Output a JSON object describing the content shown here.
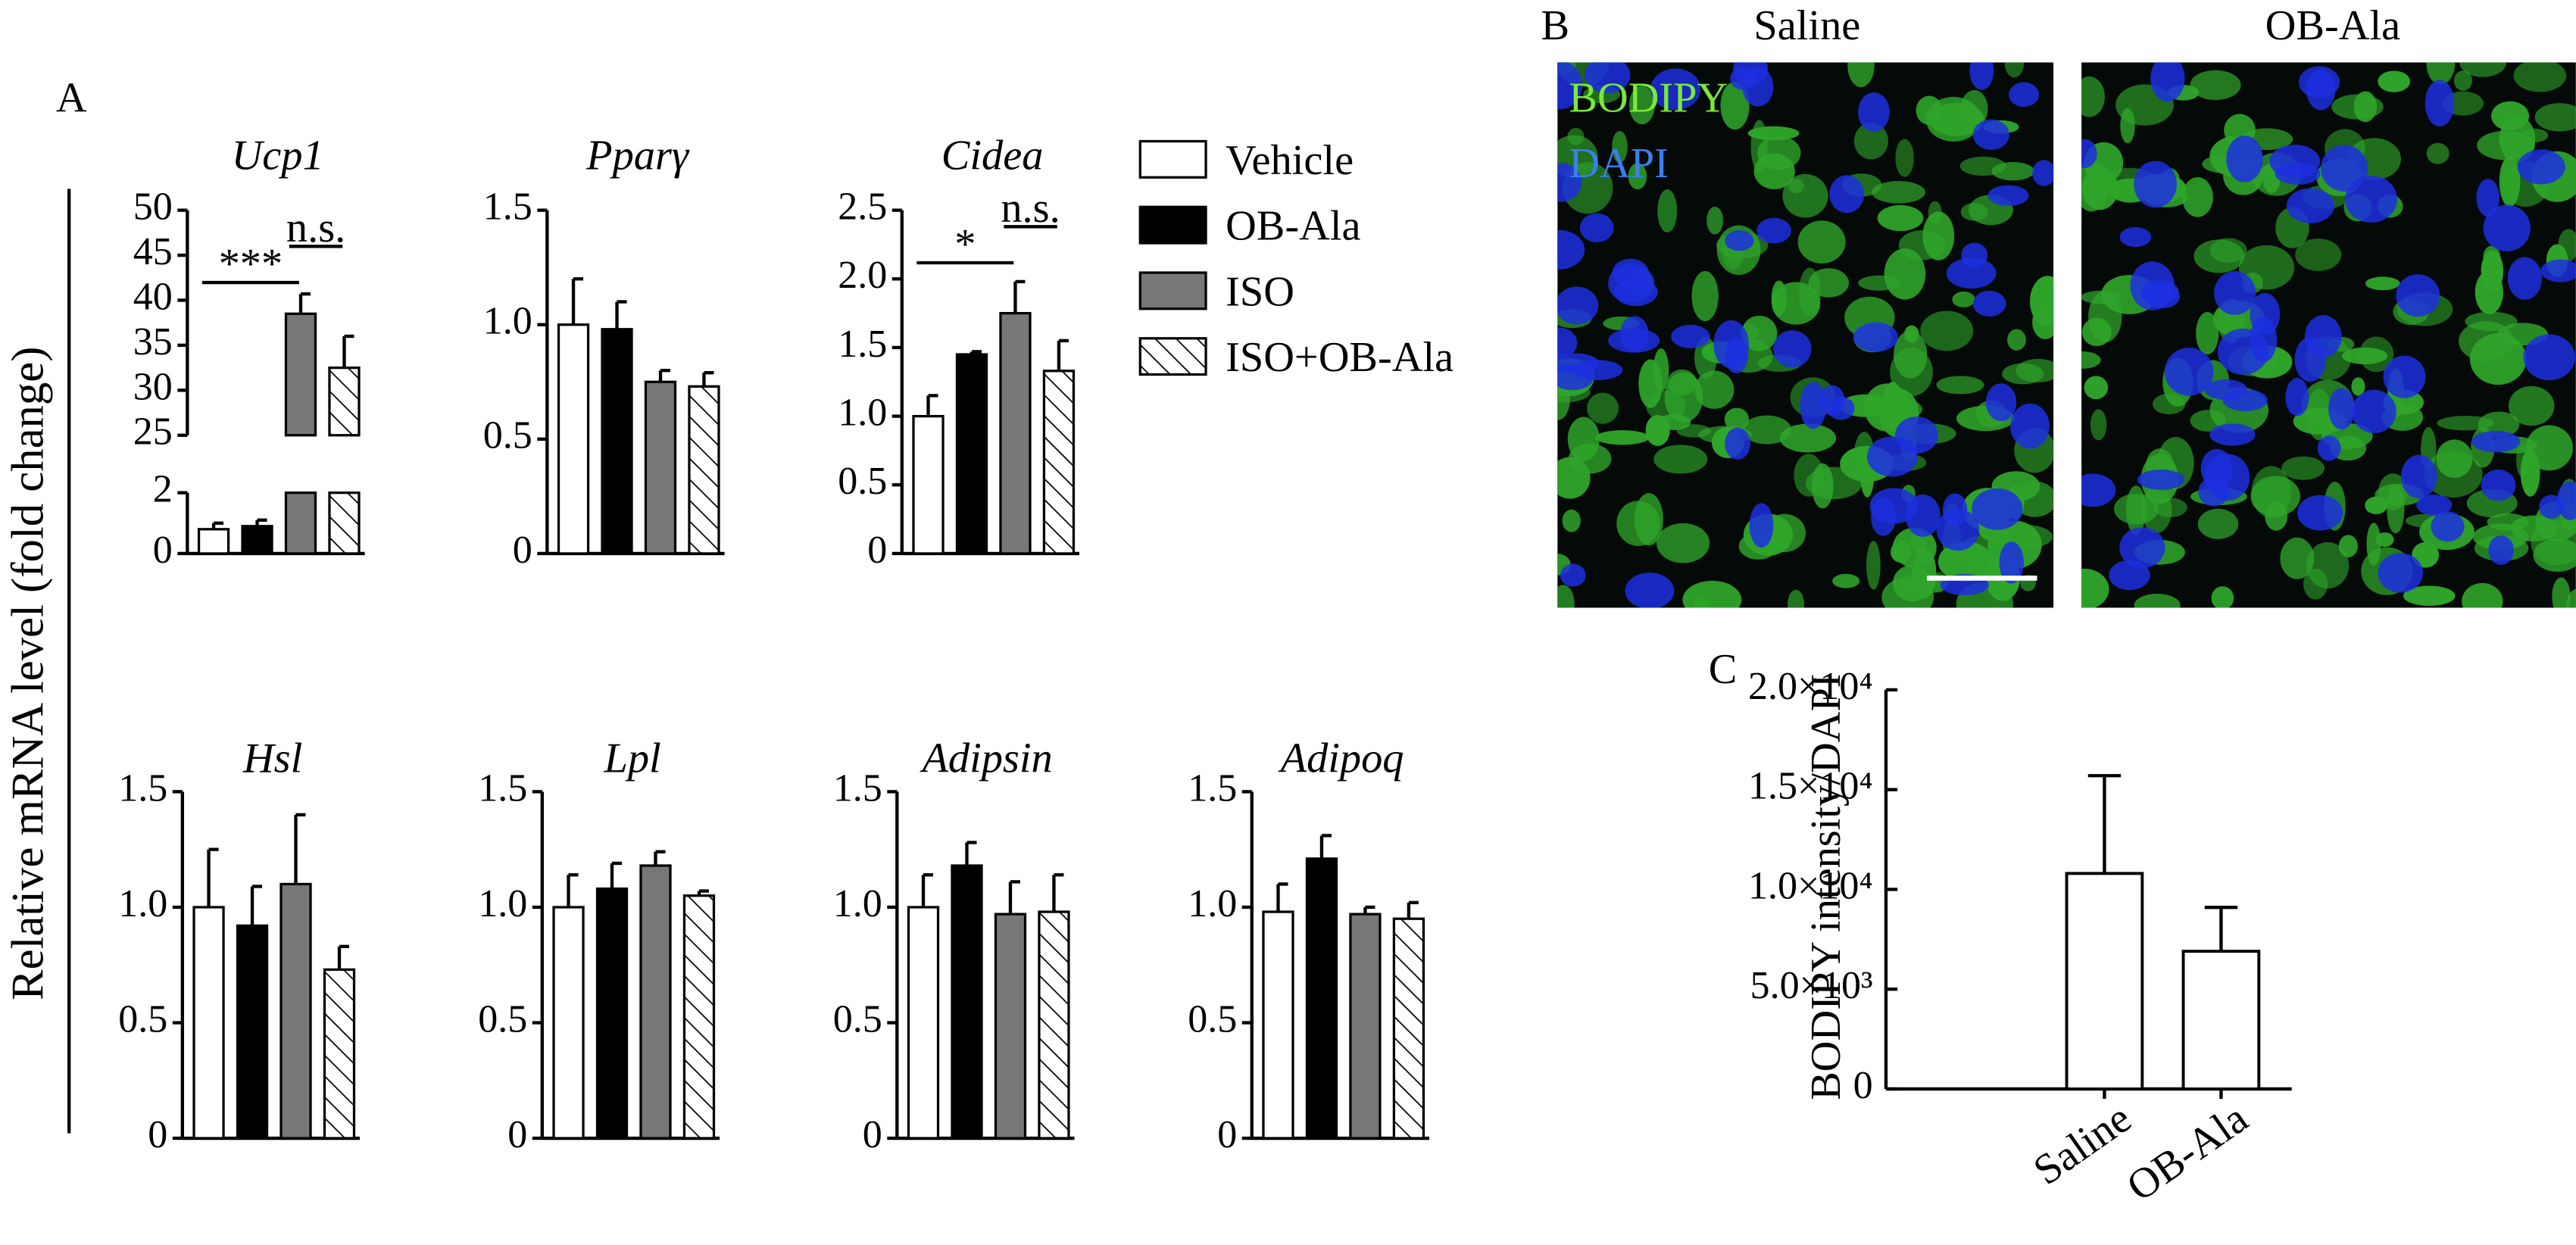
{
  "panel_labels": {
    "a": "A",
    "b": "B",
    "c": "C"
  },
  "ylabel_a": "Relative mRNA level (fold change)",
  "legend": [
    {
      "name": "Vehicle",
      "fill": "#ffffff"
    },
    {
      "name": "OB-Ala",
      "fill": "#000000"
    },
    {
      "name": "ISO",
      "fill": "#777777"
    },
    {
      "name": "ISO+OB-Ala",
      "fill": "hatch"
    }
  ],
  "images": {
    "left_title": "Saline",
    "right_title": "OB-Ala",
    "stain_1": "BODIPY",
    "stain_2": "DAPI"
  },
  "chart_data": [
    {
      "type": "bar",
      "title": "Ucp1",
      "values": [
        0.8,
        0.9,
        38.5,
        32.5
      ],
      "errors": [
        0.2,
        0.2,
        2.2,
        3.5
      ],
      "ylim": [
        0,
        50
      ],
      "ybreak": [
        2,
        25
      ],
      "yticks": [
        0,
        2,
        25,
        30,
        35,
        40,
        45,
        50
      ],
      "annotations": [
        "***",
        "n.s."
      ]
    },
    {
      "type": "bar",
      "title": "Pparγ",
      "values": [
        1.0,
        0.98,
        0.75,
        0.73
      ],
      "errors": [
        0.2,
        0.12,
        0.05,
        0.06
      ],
      "ylim": [
        0,
        1.5
      ],
      "yticks": [
        0,
        {
          "value": 0.5,
          "label": "0.5"
        },
        {
          "value": 1,
          "label": "1.0"
        },
        {
          "value": 1.5,
          "label": "1.5"
        }
      ]
    },
    {
      "type": "bar",
      "title": "Cidea",
      "values": [
        1.0,
        1.45,
        1.75,
        1.33
      ],
      "errors": [
        0.15,
        0.02,
        0.23,
        0.22
      ],
      "ylim": [
        0,
        2.5
      ],
      "yticks": [
        0,
        0.5,
        {
          "value": 1,
          "label": "1.0"
        },
        1.5,
        {
          "value": 2,
          "label": "2.0"
        },
        2.5
      ],
      "annotations": [
        "*",
        "n.s."
      ]
    },
    {
      "type": "bar",
      "title": "Hsl",
      "values": [
        1.0,
        0.92,
        1.1,
        0.73
      ],
      "errors": [
        0.25,
        0.17,
        0.3,
        0.1
      ],
      "ylim": [
        0,
        1.5
      ],
      "yticks": [
        0,
        0.5,
        {
          "value": 1,
          "label": "1.0"
        },
        1.5
      ]
    },
    {
      "type": "bar",
      "title": "Lpl",
      "values": [
        1.0,
        1.08,
        1.18,
        1.05
      ],
      "errors": [
        0.14,
        0.11,
        0.06,
        0.02
      ],
      "ylim": [
        0,
        1.5
      ],
      "yticks": [
        0,
        0.5,
        {
          "value": 1,
          "label": "1.0"
        },
        1.5
      ]
    },
    {
      "type": "bar",
      "title": "Adipsin",
      "values": [
        1.0,
        1.18,
        0.97,
        0.98
      ],
      "errors": [
        0.14,
        0.1,
        0.14,
        0.16
      ],
      "ylim": [
        0,
        1.5
      ],
      "yticks": [
        0,
        0.5,
        {
          "value": 1,
          "label": "1.0"
        },
        1.5
      ]
    },
    {
      "type": "bar",
      "title": "Adipoq",
      "values": [
        0.98,
        1.21,
        0.97,
        0.95
      ],
      "errors": [
        0.12,
        0.1,
        0.03,
        0.07
      ],
      "ylim": [
        0,
        1.5
      ],
      "yticks": [
        0,
        0.5,
        {
          "value": 1,
          "label": "1.0"
        },
        1.5
      ]
    },
    {
      "type": "bar",
      "ylabel": "BODIPY intensity/DAPI",
      "categories": [
        "Saline",
        "OB-Ala"
      ],
      "values": [
        10800,
        6900
      ],
      "errors": [
        4900,
        2200
      ],
      "ylim": [
        0,
        20000
      ],
      "yticks": [
        0,
        {
          "value": 5000,
          "label": "5.0×10³"
        },
        {
          "value": 10000,
          "label": "1.0×10⁴"
        },
        {
          "value": 15000,
          "label": "1.5×10⁴"
        },
        {
          "value": 20000,
          "label": "2.0×10⁴"
        }
      ]
    }
  ]
}
